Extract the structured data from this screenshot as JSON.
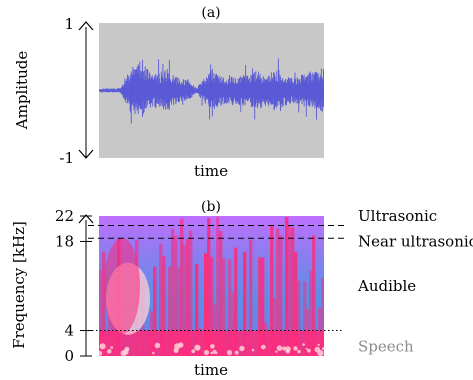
{
  "chart_data": [
    {
      "panel": "(a)",
      "type": "line",
      "xlabel": "time",
      "ylabel": "Amplitude",
      "ylim": [
        -1,
        1
      ],
      "yticks": [
        1,
        -1
      ],
      "grid": false,
      "background": "#c8c8c8",
      "series": [
        {
          "color": "#5a5ad6",
          "envelope": [
            0.03,
            0.03,
            0.03,
            0.05,
            0.3,
            0.42,
            0.35,
            0.28,
            0.26,
            0.33,
            0.22,
            0.18,
            0.15,
            0.04,
            0.18,
            0.3,
            0.25,
            0.2,
            0.22,
            0.24,
            0.23,
            0.3,
            0.25,
            0.28,
            0.32,
            0.22,
            0.2,
            0.24,
            0.26,
            0.3,
            0.35
          ]
        }
      ]
    },
    {
      "panel": "(b)",
      "type": "heatmap",
      "xlabel": "time",
      "ylabel": "Frequency [kHz]",
      "ylim": [
        0,
        22
      ],
      "yticks": [
        0,
        4,
        18,
        22
      ],
      "colors": {
        "low": "#4f8fe6",
        "mid": "#ff2a7a",
        "high": "#ffd0d6",
        "accent": "#c070ff"
      },
      "annotations": [
        {
          "text": "Ultrasonic",
          "y_khz": 22,
          "line": "dashed",
          "line_y_khz": 20.5
        },
        {
          "text": "Near ultrasonic",
          "y_khz": 18,
          "line": "dashed",
          "line_y_khz": 18.5
        },
        {
          "text": "Audible",
          "y_khz": 11
        },
        {
          "text": "Speech",
          "y_khz": 1.5,
          "line": "dotted",
          "line_y_khz": 4,
          "color": "#8c8c8c"
        }
      ]
    }
  ]
}
